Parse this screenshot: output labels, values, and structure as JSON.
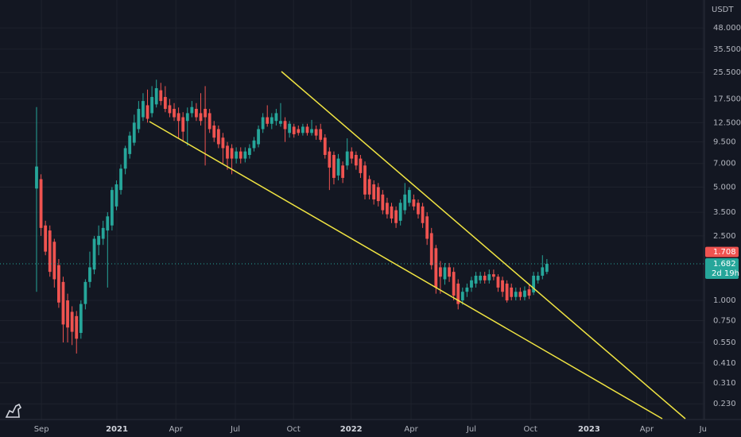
{
  "chart_data": {
    "type": "candlestick",
    "unit": "USDT",
    "log_scale": true,
    "grid": true,
    "up_color": "#26a69a",
    "down_color": "#ef5350",
    "ylim": [
      0.184,
      71.4
    ],
    "yticks": [
      {
        "value": 48,
        "label": "48.000"
      },
      {
        "value": 35.5,
        "label": "35.500"
      },
      {
        "value": 25.5,
        "label": "25.500"
      },
      {
        "value": 17.5,
        "label": "17.500"
      },
      {
        "value": 12.5,
        "label": "12.500"
      },
      {
        "value": 9.5,
        "label": "9.500"
      },
      {
        "value": 7,
        "label": "7.000"
      },
      {
        "value": 5,
        "label": "5.000"
      },
      {
        "value": 3.5,
        "label": "3.500"
      },
      {
        "value": 2.5,
        "label": "2.500"
      },
      {
        "value": 1,
        "label": "1.000"
      },
      {
        "value": 0.75,
        "label": "0.750"
      },
      {
        "value": 0.55,
        "label": "0.550"
      },
      {
        "value": 0.41,
        "label": "0.410"
      },
      {
        "value": 0.31,
        "label": "0.310"
      },
      {
        "value": 0.23,
        "label": "0.230"
      }
    ],
    "xlim": [
      -8.24,
      150.5
    ],
    "xticks": [
      {
        "value": 1.1,
        "label": "Sep"
      },
      {
        "value": 18.1,
        "label": "2021"
      },
      {
        "value": 31.4,
        "label": "Apr"
      },
      {
        "value": 44.8,
        "label": "Jul"
      },
      {
        "value": 57.9,
        "label": "Oct"
      },
      {
        "value": 70.9,
        "label": "2022"
      },
      {
        "value": 84.4,
        "label": "Apr"
      },
      {
        "value": 98,
        "label": "Jul"
      },
      {
        "value": 111.3,
        "label": "Oct"
      },
      {
        "value": 124.5,
        "label": "2023"
      },
      {
        "value": 137.5,
        "label": "Apr"
      },
      {
        "value": 150.2,
        "label": "Ju"
      }
    ],
    "last_price": {
      "value": 1.708,
      "label": "1.708"
    },
    "current_price": {
      "value": 1.682,
      "label": "1.682"
    },
    "countdown": "2d 19h",
    "ohlc": [
      [
        4.9,
        15.6,
        1.13,
        6.7
      ],
      [
        5.6,
        6.0,
        2.5,
        2.8
      ],
      [
        2.9,
        3.1,
        1.9,
        2.0
      ],
      [
        2.7,
        2.9,
        1.4,
        1.5
      ],
      [
        2.3,
        2.4,
        1.2,
        1.35
      ],
      [
        1.65,
        1.8,
        0.9,
        0.97
      ],
      [
        1.3,
        1.4,
        0.55,
        0.71
      ],
      [
        1.0,
        1.1,
        0.55,
        0.68
      ],
      [
        0.85,
        0.92,
        0.53,
        0.64
      ],
      [
        0.8,
        0.86,
        0.47,
        0.58
      ],
      [
        0.63,
        1.0,
        0.58,
        0.95
      ],
      [
        0.95,
        1.35,
        0.88,
        1.3
      ],
      [
        1.3,
        2.0,
        1.2,
        1.6
      ],
      [
        1.55,
        2.5,
        1.45,
        2.4
      ],
      [
        2.2,
        2.9,
        1.9,
        2.5
      ],
      [
        2.4,
        3.1,
        2.2,
        2.8
      ],
      [
        2.7,
        3.5,
        1.2,
        3.3
      ],
      [
        2.9,
        5.0,
        2.7,
        4.8
      ],
      [
        3.8,
        5.5,
        3.6,
        5.2
      ],
      [
        4.8,
        6.9,
        4.5,
        6.5
      ],
      [
        6.5,
        9.0,
        6.0,
        8.7
      ],
      [
        8.0,
        11.0,
        7.5,
        10.4
      ],
      [
        9.4,
        14.0,
        9.0,
        12.5
      ],
      [
        11.4,
        17.0,
        10.8,
        15.2
      ],
      [
        13.5,
        19.0,
        12.8,
        17.0
      ],
      [
        16.0,
        20.0,
        12.5,
        13.2
      ],
      [
        14.3,
        21.0,
        13.5,
        18.0
      ],
      [
        16.2,
        23.0,
        15.5,
        20.4
      ],
      [
        19.8,
        22.0,
        16.0,
        17.0
      ],
      [
        18.0,
        21.0,
        14.5,
        15.2
      ],
      [
        16.0,
        17.5,
        13.5,
        14.3
      ],
      [
        15.2,
        16.5,
        12.8,
        13.5
      ],
      [
        14.3,
        15.5,
        10.0,
        12.8
      ],
      [
        13.5,
        14.5,
        9.5,
        11.0
      ],
      [
        12.8,
        15.5,
        9.0,
        14.3
      ],
      [
        14.3,
        17.0,
        13.5,
        15.6
      ],
      [
        15.2,
        16.5,
        12.8,
        13.5
      ],
      [
        14.3,
        19.0,
        12.0,
        12.8
      ],
      [
        15.2,
        21.0,
        6.8,
        13.5
      ],
      [
        14.3,
        15.2,
        10.8,
        11.4
      ],
      [
        12.0,
        12.8,
        9.5,
        10.1
      ],
      [
        11.4,
        12.0,
        8.7,
        9.2
      ],
      [
        10.1,
        10.8,
        7.0,
        8.7
      ],
      [
        9.0,
        9.5,
        6.4,
        7.5
      ],
      [
        8.7,
        9.2,
        6.0,
        7.5
      ],
      [
        7.5,
        8.8,
        7.0,
        8.3
      ],
      [
        8.3,
        8.8,
        7.0,
        7.5
      ],
      [
        7.5,
        8.8,
        7.1,
        8.3
      ],
      [
        7.9,
        9.2,
        7.5,
        8.7
      ],
      [
        8.7,
        10.2,
        8.3,
        9.7
      ],
      [
        9.2,
        12.0,
        8.8,
        11.4
      ],
      [
        11.4,
        14.3,
        10.8,
        13.5
      ],
      [
        13.5,
        16.0,
        11.8,
        12.3
      ],
      [
        12.3,
        14.3,
        11.4,
        13.5
      ],
      [
        12.8,
        15.2,
        12.0,
        14.3
      ],
      [
        12.3,
        16.5,
        11.8,
        12.8
      ],
      [
        12.8,
        13.5,
        9.5,
        11.4
      ],
      [
        10.8,
        12.8,
        10.1,
        12.3
      ],
      [
        11.8,
        12.3,
        10.1,
        10.6
      ],
      [
        11.4,
        12.0,
        10.4,
        10.8
      ],
      [
        10.8,
        12.3,
        10.4,
        11.8
      ],
      [
        11.8,
        12.3,
        10.4,
        10.8
      ],
      [
        10.8,
        13.0,
        10.4,
        11.4
      ],
      [
        11.4,
        12.0,
        9.8,
        10.4
      ],
      [
        11.4,
        12.3,
        9.5,
        9.8
      ],
      [
        10.1,
        10.6,
        7.5,
        7.9
      ],
      [
        8.3,
        8.8,
        4.8,
        6.6
      ],
      [
        7.9,
        8.3,
        5.2,
        5.7
      ],
      [
        5.9,
        8.0,
        5.5,
        7.5
      ],
      [
        6.8,
        7.2,
        5.3,
        5.7
      ],
      [
        6.8,
        10.0,
        6.4,
        8.3
      ],
      [
        8.3,
        8.8,
        7.0,
        7.5
      ],
      [
        7.9,
        8.3,
        6.4,
        6.8
      ],
      [
        7.5,
        7.9,
        5.7,
        6.1
      ],
      [
        6.8,
        7.2,
        4.2,
        4.5
      ],
      [
        5.6,
        5.9,
        4.2,
        4.5
      ],
      [
        5.2,
        5.5,
        3.9,
        4.2
      ],
      [
        5.0,
        5.3,
        3.8,
        4.1
      ],
      [
        4.5,
        4.8,
        3.4,
        3.6
      ],
      [
        4.0,
        4.3,
        3.2,
        3.4
      ],
      [
        3.8,
        4.0,
        3.0,
        3.2
      ],
      [
        3.6,
        3.8,
        2.8,
        3.0
      ],
      [
        3.1,
        4.2,
        2.9,
        4.0
      ],
      [
        3.6,
        5.3,
        3.4,
        4.5
      ],
      [
        4.0,
        5.0,
        3.8,
        4.8
      ],
      [
        4.2,
        4.5,
        3.6,
        3.8
      ],
      [
        4.0,
        4.2,
        3.2,
        3.4
      ],
      [
        3.8,
        4.0,
        2.8,
        3.0
      ],
      [
        3.3,
        3.5,
        2.2,
        2.4
      ],
      [
        2.6,
        2.8,
        1.55,
        1.65
      ],
      [
        2.1,
        2.2,
        1.1,
        1.2
      ],
      [
        1.6,
        1.75,
        1.1,
        1.4
      ],
      [
        1.35,
        1.7,
        1.25,
        1.6
      ],
      [
        1.6,
        1.7,
        1.3,
        1.4
      ],
      [
        1.5,
        1.6,
        1.0,
        1.07
      ],
      [
        1.27,
        1.35,
        0.88,
        0.95
      ],
      [
        1.0,
        1.2,
        0.94,
        1.13
      ],
      [
        1.13,
        1.27,
        1.05,
        1.2
      ],
      [
        1.2,
        1.4,
        1.13,
        1.33
      ],
      [
        1.27,
        1.5,
        1.2,
        1.42
      ],
      [
        1.33,
        1.5,
        1.27,
        1.42
      ],
      [
        1.42,
        1.5,
        1.27,
        1.33
      ],
      [
        1.33,
        1.55,
        1.27,
        1.45
      ],
      [
        1.45,
        1.55,
        1.33,
        1.4
      ],
      [
        1.4,
        1.45,
        1.13,
        1.2
      ],
      [
        1.33,
        1.4,
        1.05,
        1.13
      ],
      [
        1.27,
        1.33,
        0.97,
        1.0
      ],
      [
        1.2,
        1.27,
        1.0,
        1.05
      ],
      [
        1.05,
        1.2,
        1.0,
        1.13
      ],
      [
        1.13,
        1.2,
        1.0,
        1.05
      ],
      [
        1.05,
        1.22,
        1.0,
        1.15
      ],
      [
        1.17,
        1.25,
        1.02,
        1.07
      ],
      [
        1.12,
        1.5,
        1.08,
        1.42
      ],
      [
        1.33,
        1.5,
        1.27,
        1.42
      ],
      [
        1.42,
        1.9,
        1.35,
        1.6
      ],
      [
        1.5,
        1.8,
        1.45,
        1.682
      ]
    ]
  }
}
